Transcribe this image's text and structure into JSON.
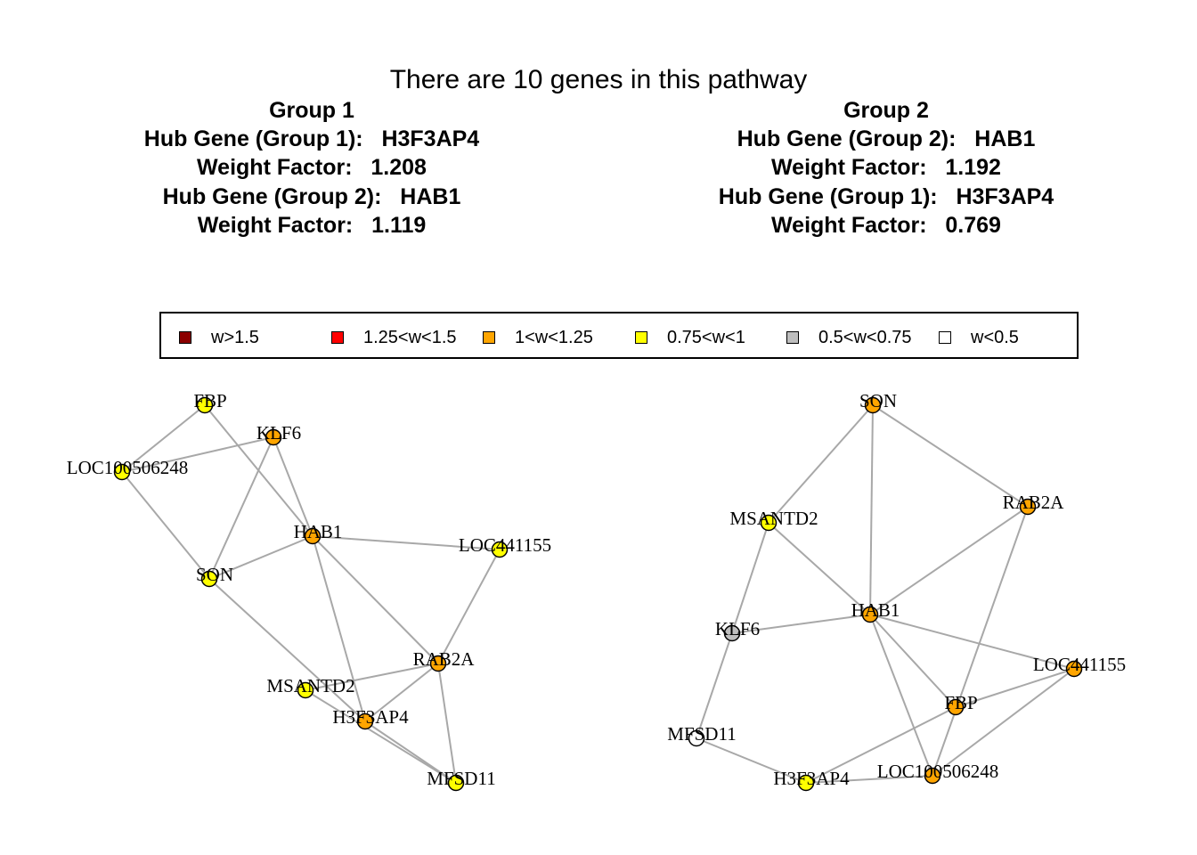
{
  "title": "There are 10 genes in this pathway",
  "groups": [
    {
      "heading": "Group 1",
      "hub1_line": "Hub Gene (Group 1):   H3F3AP4",
      "wf1_line": "Weight Factor:   1.208",
      "hub2_line": "Hub Gene (Group 2):   HAB1",
      "wf2_line": "Weight Factor:   1.119"
    },
    {
      "heading": "Group 2",
      "hub1_line": "Hub Gene (Group 2):   HAB1",
      "wf1_line": "Weight Factor:   1.192",
      "hub2_line": "Hub Gene (Group 1):   H3F3AP4",
      "wf2_line": "Weight Factor:   0.769"
    }
  ],
  "legend": [
    {
      "label": "w>1.5",
      "color": "#8b0000"
    },
    {
      "label": "1.25<w<1.5",
      "color": "#ff0000"
    },
    {
      "label": "1<w<1.25",
      "color": "#ffa500"
    },
    {
      "label": "0.75<w<1",
      "color": "#ffff00"
    },
    {
      "label": "0.5<w<0.75",
      "color": "#bebebe"
    },
    {
      "label": "w<0.5",
      "color": "#ffffff"
    }
  ],
  "networks": [
    {
      "name": "group1",
      "nodes": [
        {
          "id": "FBP",
          "label": "FBP",
          "weight_class": "0.75<w<1"
        },
        {
          "id": "KLF6",
          "label": "KLF6",
          "weight_class": "1<w<1.25"
        },
        {
          "id": "LOC100506248",
          "label": "LOC100506248",
          "weight_class": "0.75<w<1"
        },
        {
          "id": "HAB1",
          "label": "HAB1",
          "weight_class": "1<w<1.25"
        },
        {
          "id": "LOC441155",
          "label": "LOC441155",
          "weight_class": "0.75<w<1"
        },
        {
          "id": "SON",
          "label": "SON",
          "weight_class": "0.75<w<1"
        },
        {
          "id": "RAB2A",
          "label": "RAB2A",
          "weight_class": "1<w<1.25"
        },
        {
          "id": "MSANTD2",
          "label": "MSANTD2",
          "weight_class": "0.75<w<1"
        },
        {
          "id": "H3F3AP4",
          "label": "H3F3AP4",
          "weight_class": "1<w<1.25"
        },
        {
          "id": "MFSD11",
          "label": "MFSD11",
          "weight_class": "0.75<w<1"
        }
      ],
      "edges": [
        [
          "FBP",
          "LOC100506248"
        ],
        [
          "FBP",
          "HAB1"
        ],
        [
          "KLF6",
          "LOC100506248"
        ],
        [
          "KLF6",
          "HAB1"
        ],
        [
          "KLF6",
          "SON"
        ],
        [
          "LOC100506248",
          "SON"
        ],
        [
          "HAB1",
          "SON"
        ],
        [
          "HAB1",
          "LOC441155"
        ],
        [
          "HAB1",
          "RAB2A"
        ],
        [
          "HAB1",
          "H3F3AP4"
        ],
        [
          "LOC441155",
          "RAB2A"
        ],
        [
          "SON",
          "H3F3AP4"
        ],
        [
          "RAB2A",
          "MSANTD2"
        ],
        [
          "RAB2A",
          "H3F3AP4"
        ],
        [
          "RAB2A",
          "MFSD11"
        ],
        [
          "MSANTD2",
          "MFSD11"
        ],
        [
          "H3F3AP4",
          "MFSD11"
        ]
      ]
    },
    {
      "name": "group2",
      "nodes": [
        {
          "id": "SON",
          "label": "SON",
          "weight_class": "1<w<1.25"
        },
        {
          "id": "RAB2A",
          "label": "RAB2A",
          "weight_class": "1<w<1.25"
        },
        {
          "id": "MSANTD2",
          "label": "MSANTD2",
          "weight_class": "0.75<w<1"
        },
        {
          "id": "HAB1",
          "label": "HAB1",
          "weight_class": "1<w<1.25"
        },
        {
          "id": "KLF6",
          "label": "KLF6",
          "weight_class": "0.5<w<0.75"
        },
        {
          "id": "LOC441155",
          "label": "LOC441155",
          "weight_class": "1<w<1.25"
        },
        {
          "id": "FBP",
          "label": "FBP",
          "weight_class": "1<w<1.25"
        },
        {
          "id": "MFSD11",
          "label": "MFSD11",
          "weight_class": "w<0.5"
        },
        {
          "id": "LOC100506248",
          "label": "LOC100506248",
          "weight_class": "1<w<1.25"
        },
        {
          "id": "H3F3AP4",
          "label": "H3F3AP4",
          "weight_class": "0.75<w<1"
        }
      ],
      "edges": [
        [
          "SON",
          "MSANTD2"
        ],
        [
          "SON",
          "HAB1"
        ],
        [
          "SON",
          "RAB2A"
        ],
        [
          "RAB2A",
          "HAB1"
        ],
        [
          "RAB2A",
          "LOC100506248"
        ],
        [
          "MSANTD2",
          "HAB1"
        ],
        [
          "MSANTD2",
          "KLF6"
        ],
        [
          "HAB1",
          "KLF6"
        ],
        [
          "HAB1",
          "LOC441155"
        ],
        [
          "HAB1",
          "FBP"
        ],
        [
          "HAB1",
          "LOC100506248"
        ],
        [
          "KLF6",
          "MFSD11"
        ],
        [
          "MFSD11",
          "H3F3AP4"
        ],
        [
          "H3F3AP4",
          "FBP"
        ],
        [
          "H3F3AP4",
          "LOC100506248"
        ],
        [
          "FBP",
          "LOC441155"
        ],
        [
          "LOC441155",
          "LOC100506248"
        ]
      ]
    }
  ]
}
